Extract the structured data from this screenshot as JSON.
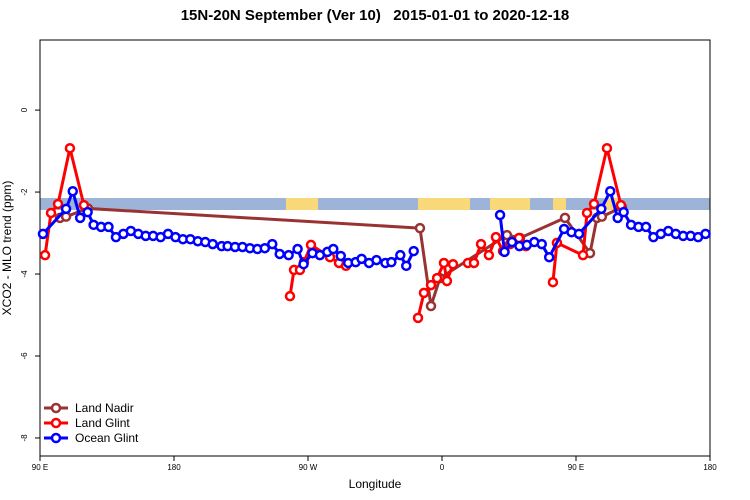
{
  "chart_data": {
    "type": "line",
    "title": "15N-20N September (Ver 10)   2015-01-01 to 2020-12-18",
    "x_label": "Longitude",
    "y_label": "XCO2 - MLO trend (ppm)",
    "xlim": [
      90,
      540
    ],
    "xticks": [
      {
        "value": 90,
        "label": "90 E"
      },
      180,
      {
        "value": 270,
        "label": "90 W"
      },
      {
        "value": 360,
        "label": "0"
      },
      {
        "value": 450,
        "label": "90 E"
      },
      {
        "value": 540,
        "label": "180"
      }
    ],
    "ylim": [
      -8.44,
      1.71
    ],
    "yticks": [
      0,
      -2,
      -4,
      -6,
      -8
    ],
    "legend": "bottom-left",
    "series": [
      {
        "name": "Land Nadir",
        "color": "#993333",
        "x": [
          103.4,
          107.5,
          122.2,
          345.2,
          352.6,
          358.6,
          403.6,
          412.4,
          442.6,
          459.4,
          464.1,
          467.4,
          480.9
        ],
        "values": [
          -2.63,
          -2.6,
          -2.4,
          -2.88,
          -4.78,
          -4.1,
          -3.05,
          -3.12,
          -2.63,
          -3.49,
          -2.63,
          -2.6,
          -2.37
        ]
      },
      {
        "name": "Land Glint",
        "color": "#ff0000",
        "x": [
          93.4,
          97.4,
          102.1,
          110.1,
          119.5,
          null,
          257.9,
          260.6,
          264.6,
          267.3,
          272,
          284.8,
          290.8,
          295.5,
          null,
          343.9,
          347.9,
          352.6,
          356.7,
          361.3,
          363.3,
          367.4,
          null,
          377.4,
          381.5,
          386.2,
          391.5,
          396.2,
          401,
          405.7,
          411.7,
          416.4,
          null,
          434.5,
          437.2,
          454.7,
          457.4,
          462.1,
          470.8,
          480.2
        ],
        "values": [
          -3.54,
          -2.51,
          -2.29,
          -0.93,
          -2.32,
          null,
          -4.54,
          -3.9,
          -3.9,
          -3.71,
          -3.29,
          -3.59,
          -3.73,
          -3.8,
          null,
          -5.07,
          -4.46,
          -4.27,
          -4.1,
          -3.73,
          -4.17,
          -3.76,
          null,
          -3.73,
          -3.73,
          -3.27,
          -3.54,
          -3.1,
          -3.44,
          -3.27,
          -3.12,
          -3.32,
          null,
          -4.2,
          -3.24,
          -3.54,
          -2.51,
          -2.29,
          -0.93,
          -2.32
        ]
      },
      {
        "name": "Ocean Glint",
        "color": "#0000ff",
        "x": [
          92,
          107.5,
          112,
          117,
          122,
          126,
          131,
          136,
          141,
          146,
          151,
          156,
          161,
          166,
          171,
          176,
          181,
          186,
          191,
          196,
          201,
          206,
          212,
          216,
          221,
          226,
          231,
          236,
          241,
          246,
          251,
          257,
          263,
          267,
          273,
          278,
          283,
          287,
          292,
          297,
          302,
          306,
          311,
          316,
          322,
          326,
          332,
          336,
          341,
          null,
          399,
          402,
          407,
          412,
          417,
          422,
          427,
          432,
          442,
          447,
          452,
          467,
          473,
          478,
          482,
          487,
          492,
          497,
          502,
          507,
          512,
          517,
          522,
          527,
          532,
          537
        ],
        "values": [
          -3.02,
          -2.41,
          -1.98,
          -2.63,
          -2.49,
          -2.8,
          -2.85,
          -2.85,
          -3.1,
          -3.02,
          -2.95,
          -3.02,
          -3.07,
          -3.07,
          -3.1,
          -3.02,
          -3.1,
          -3.15,
          -3.15,
          -3.2,
          -3.22,
          -3.27,
          -3.32,
          -3.32,
          -3.34,
          -3.34,
          -3.37,
          -3.39,
          -3.37,
          -3.27,
          -3.51,
          -3.54,
          -3.39,
          -3.76,
          -3.49,
          -3.54,
          -3.46,
          -3.39,
          -3.56,
          -3.73,
          -3.71,
          -3.63,
          -3.73,
          -3.66,
          -3.73,
          -3.71,
          -3.54,
          -3.8,
          -3.44,
          null,
          -2.56,
          -3.46,
          -3.22,
          -3.32,
          -3.29,
          -3.22,
          -3.27,
          -3.59,
          -2.9,
          -2.98,
          -3.02,
          -2.41,
          -1.98,
          -2.63,
          -2.49,
          -2.8,
          -2.85,
          -2.85,
          -3.1,
          -3.02,
          -2.95,
          -3.02,
          -3.07,
          -3.07,
          -3.1,
          -3.02
        ]
      }
    ]
  }
}
